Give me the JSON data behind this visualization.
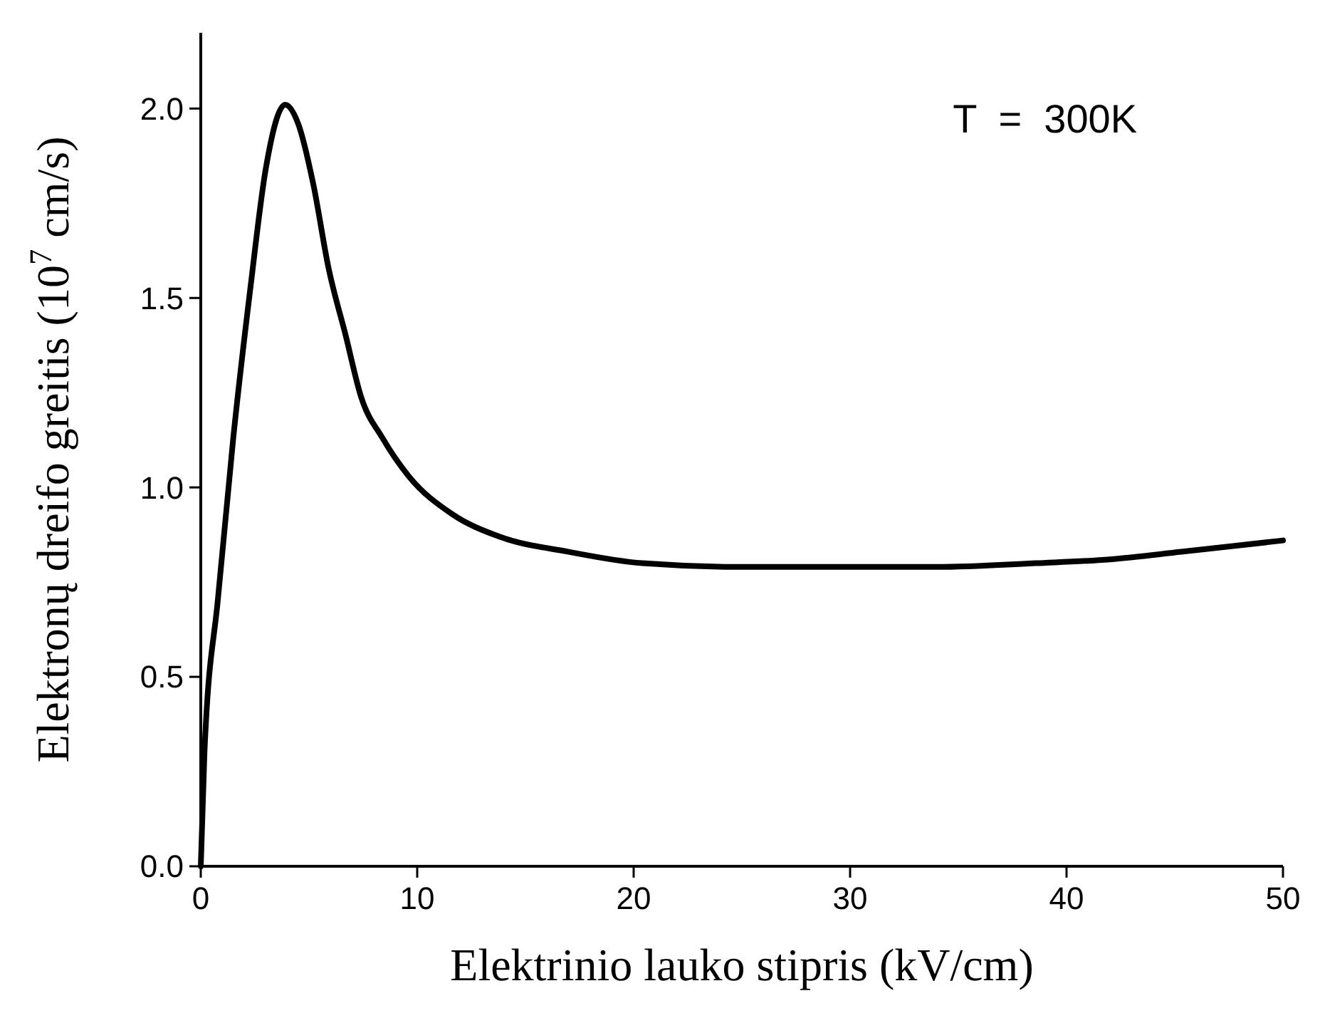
{
  "chart_data": {
    "type": "line",
    "xlabel": "Elektrinio lauko stipris (kV/cm)",
    "ylabel": "Elektronų dreifo greitis (10$^{7}$ cm/s)",
    "annotations": [
      "T  =  300K"
    ],
    "series": [
      {
        "color": "#000000",
        "x": [
          0,
          0.17,
          0.8,
          1.5,
          2.3,
          3,
          3.9,
          4.5,
          5.2,
          5.9,
          6.7,
          7.4,
          8.4,
          9.6,
          11.6,
          13.8,
          17,
          20.4,
          25,
          29.5,
          34,
          38.6,
          42,
          45.3,
          50
        ],
        "values": [
          0,
          0.3,
          0.71,
          1.13,
          1.53,
          1.84,
          2.01,
          1.96,
          1.8,
          1.58,
          1.4,
          1.24,
          1.13,
          1.03,
          0.93,
          0.87,
          0.83,
          0.8,
          0.79,
          0.79,
          0.79,
          0.8,
          0.81,
          0.83,
          0.86
        ]
      }
    ],
    "xlim": [
      0,
      50
    ],
    "xticks": [
      0,
      10,
      20,
      30,
      40,
      50
    ],
    "ylim": [
      0,
      2.2
    ],
    "yticks": [
      {
        "value": 0,
        "label": "0.0"
      },
      {
        "value": 0.5,
        "label": "0.5"
      },
      {
        "value": 1,
        "label": "1.0"
      },
      {
        "value": 1.5,
        "label": "1.5"
      },
      {
        "value": 2,
        "label": "2.0"
      }
    ],
    "grid": false,
    "marker": "none",
    "line_style": "solid"
  }
}
